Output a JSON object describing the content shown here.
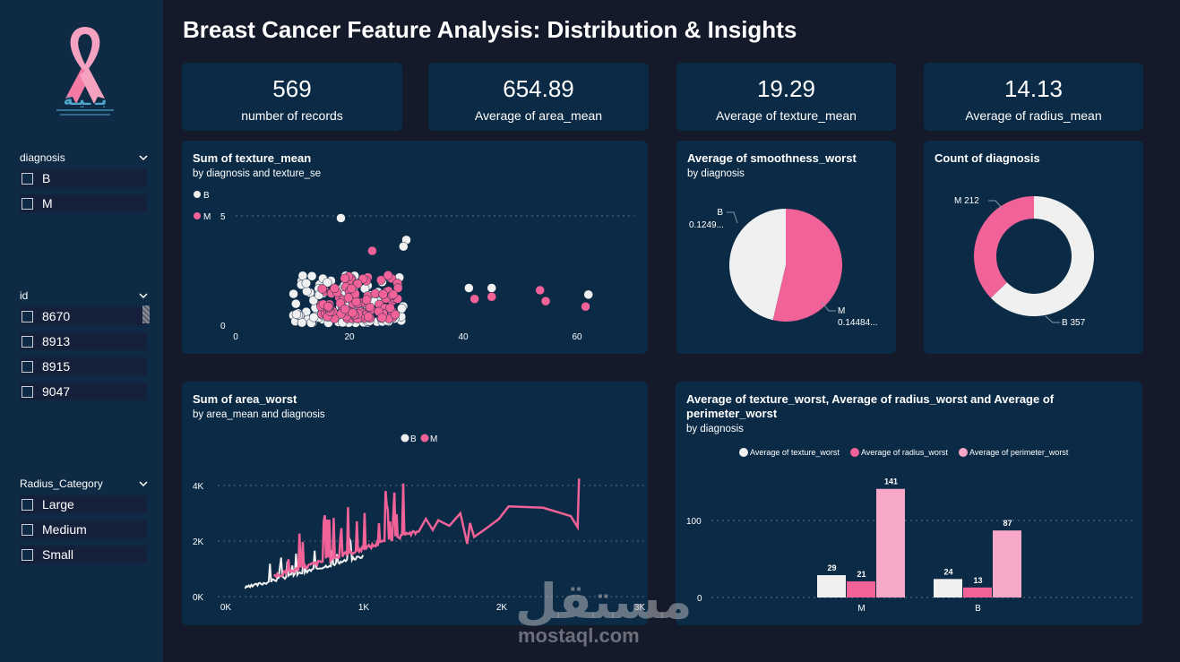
{
  "title": "Breast Cancer Feature Analysis: Distribution & Insights",
  "logo": {
    "text": "بـ ـيـة",
    "tagline": ""
  },
  "colors": {
    "benign": "#f0f0f0",
    "malignant": "#f06298",
    "perimeter": "#f7a8c8",
    "card": "#0b2a45",
    "sidebar": "#0e2a44"
  },
  "slicers": {
    "diagnosis": {
      "label": "diagnosis",
      "items": [
        "B",
        "M"
      ]
    },
    "id": {
      "label": "id",
      "items": [
        "8670",
        "8913",
        "8915",
        "9047"
      ]
    },
    "radius": {
      "label": "Radius_Category",
      "items": [
        "Large",
        "Medium",
        "Small"
      ]
    }
  },
  "kpis": [
    {
      "value": "569",
      "label": "number of records"
    },
    {
      "value": "654.89",
      "label": "Average of area_mean"
    },
    {
      "value": "19.29",
      "label": "Average of texture_mean"
    },
    {
      "value": "14.13",
      "label": "Average of radius_mean"
    }
  ],
  "scatter": {
    "title": "Sum of texture_mean",
    "subtitle": "by diagnosis and texture_se",
    "legend": [
      "B",
      "M"
    ],
    "y_ticks": [
      "5",
      "0"
    ],
    "x_ticks": [
      "0",
      "20",
      "40",
      "60"
    ]
  },
  "pie": {
    "title": "Average of smoothness_worst",
    "subtitle": "by diagnosis",
    "labels": [
      {
        "name": "B",
        "value": "0.1249..."
      },
      {
        "name": "M",
        "value": "0.14484..."
      }
    ]
  },
  "donut": {
    "title": "Count of diagnosis",
    "labels": [
      "M 212",
      "B 357"
    ]
  },
  "line": {
    "title": "Sum of area_worst",
    "subtitle": "by area_mean and diagnosis",
    "legend": [
      "B",
      "M"
    ],
    "y_ticks": [
      "4K",
      "2K",
      "0K"
    ],
    "x_ticks": [
      "0K",
      "1K",
      "2K",
      "3K"
    ]
  },
  "bars": {
    "title": "Average of texture_worst, Average of radius_worst and Average of perimeter_worst",
    "subtitle": "by diagnosis",
    "legend": [
      "Average of texture_worst",
      "Average of radius_worst",
      "Average of perimeter_worst"
    ],
    "y_ticks": [
      "100",
      "0"
    ]
  },
  "watermark": {
    "ar": "مستقل",
    "en": "mostaql.com"
  },
  "chart_data": [
    {
      "type": "pie",
      "title": "Average of smoothness_worst",
      "categories": [
        "B",
        "M"
      ],
      "values": [
        0.1249,
        0.14484
      ]
    },
    {
      "type": "pie",
      "title": "Count of diagnosis",
      "categories": [
        "M",
        "B"
      ],
      "values": [
        212,
        357
      ]
    },
    {
      "type": "bar",
      "title": "Average of texture_worst, Average of radius_worst and Average of perimeter_worst",
      "categories": [
        "M",
        "B"
      ],
      "series": [
        {
          "name": "Average of texture_worst",
          "values": [
            29,
            24
          ]
        },
        {
          "name": "Average of radius_worst",
          "values": [
            21,
            13
          ]
        },
        {
          "name": "Average of perimeter_worst",
          "values": [
            141,
            87
          ]
        }
      ],
      "ylim": [
        0,
        150
      ]
    },
    {
      "type": "scatter",
      "title": "Sum of texture_mean",
      "xlim": [
        0,
        70
      ],
      "ylim": [
        0,
        5
      ]
    },
    {
      "type": "line",
      "title": "Sum of area_worst",
      "xlim": [
        0,
        3000
      ],
      "ylim": [
        0,
        4500
      ]
    }
  ]
}
